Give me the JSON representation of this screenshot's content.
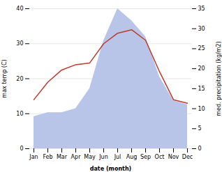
{
  "chart_data": {
    "type": "combo",
    "categories": [
      "Jan",
      "Feb",
      "Mar",
      "Apr",
      "May",
      "Jun",
      "Jul",
      "Aug",
      "Sep",
      "Oct",
      "Nov",
      "Dec"
    ],
    "series": [
      {
        "type": "area",
        "axis": "y2",
        "color": "#b8c4e8",
        "values": [
          8,
          9,
          9,
          10,
          15,
          27,
          35,
          32,
          28,
          18,
          12,
          11
        ]
      },
      {
        "type": "line",
        "color": "#c0392b",
        "values": [
          14,
          19,
          22.5,
          24,
          24.5,
          30,
          33,
          34,
          31,
          22,
          14,
          13
        ]
      }
    ],
    "xlabel": "date (month)",
    "ylabel": "max temp (C)",
    "y2label": "med. precipitation (kg/m2)",
    "ylim": [
      0,
      40
    ],
    "yticks": [
      0,
      10,
      20,
      30,
      40
    ],
    "y2lim": [
      0,
      35
    ],
    "y2ticks": [
      0,
      5,
      10,
      15,
      20,
      25,
      30,
      35
    ],
    "grid": true
  }
}
